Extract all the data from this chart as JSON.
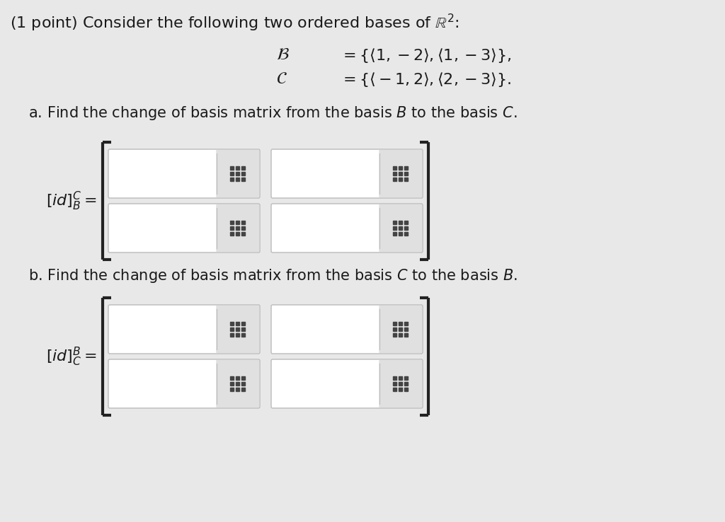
{
  "background_color": "#e8e8e8",
  "title_text": "(1 point) Consider the following two ordered bases of $\\mathbb{R}^2$:",
  "basis_B_label": "$\\mathcal{B}$",
  "basis_C_label": "$\\mathcal{C}$",
  "basis_B_value": "$= \\{\\langle 1,-2\\rangle,\\langle 1,-3\\rangle\\},$",
  "basis_C_value": "$= \\{\\langle -1,2\\rangle,\\langle 2,-3\\rangle\\}.$",
  "part_a_text": "a. Find the change of basis matrix from the basis $\\mathit{B}$ to the basis $\\mathit{C}$.",
  "part_b_text": "b. Find the change of basis matrix from the basis $\\mathit{C}$ to the basis $\\mathit{B}$.",
  "label_a": "$[id]_B^C =$",
  "label_b": "$[id]_C^B =$",
  "box_bg": "#ffffff",
  "box_bg_dark": "#e0e0e0",
  "box_border": "#bbbbbb",
  "grid_color": "#444444",
  "text_color": "#1a1a1a",
  "font_size_title": 16,
  "font_size_basis": 17,
  "font_size_body": 15,
  "font_size_label": 14,
  "bracket_color": "#222222"
}
